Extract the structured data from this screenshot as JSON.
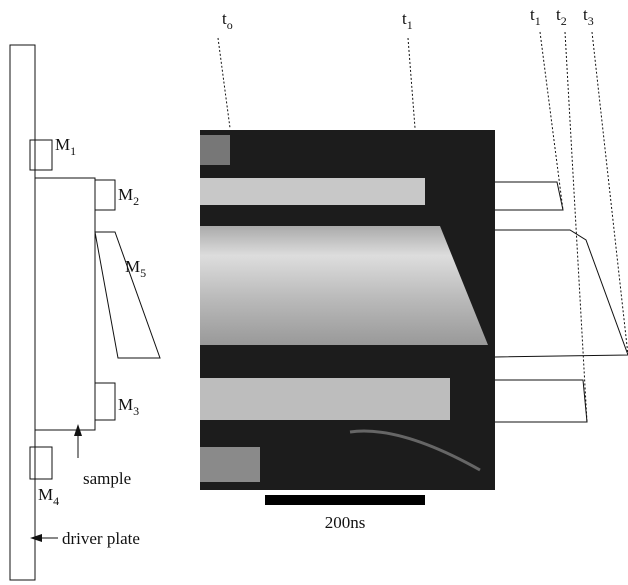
{
  "time_labels": [
    {
      "base": "t",
      "sub": "o"
    },
    {
      "base": "t",
      "sub": "1"
    },
    {
      "base": "t",
      "sub": "1"
    },
    {
      "base": "t",
      "sub": "2"
    },
    {
      "base": "t",
      "sub": "3"
    }
  ],
  "mirror_labels": [
    {
      "base": "M",
      "sub": "1"
    },
    {
      "base": "M",
      "sub": "2"
    },
    {
      "base": "M",
      "sub": "3"
    },
    {
      "base": "M",
      "sub": "4"
    },
    {
      "base": "M",
      "sub": "5"
    }
  ],
  "sample_label": "sample",
  "driver_plate_label": "driver plate",
  "scale_bar_label": "200ns"
}
